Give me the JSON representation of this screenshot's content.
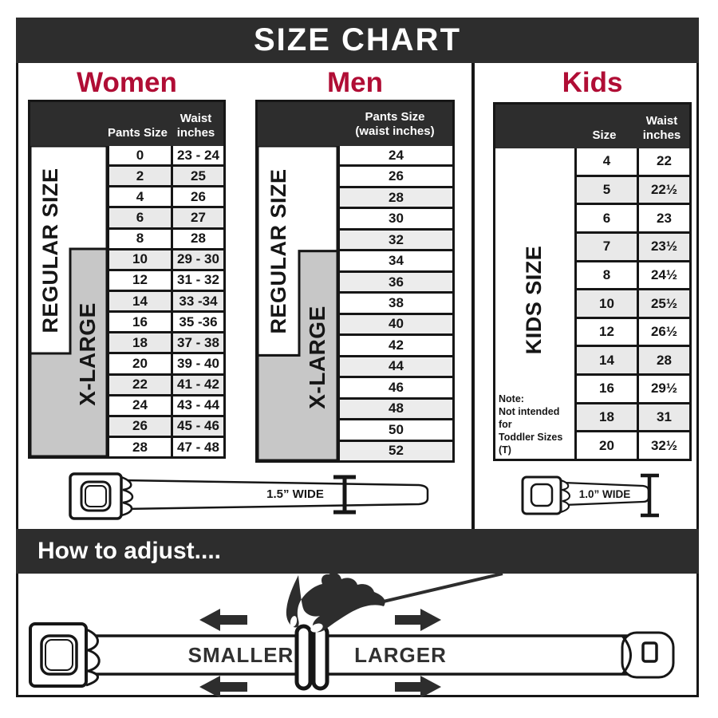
{
  "title": "SIZE CHART",
  "colors": {
    "bar_dark": "#2d2d2d",
    "accent_red": "#b00d35",
    "grid_black": "#161616",
    "xlarge_gray": "#c7c7c7",
    "row_alt_gray": "#e9e9e9"
  },
  "sections": {
    "women": {
      "title": "Women",
      "col1_header": "Pants Size",
      "col2_header_line1": "Waist",
      "col2_header_line2": "inches",
      "regular_label": "REGULAR SIZE",
      "xlarge_label": "X-LARGE",
      "rows": [
        [
          "0",
          "23 - 24"
        ],
        [
          "2",
          "25"
        ],
        [
          "4",
          "26"
        ],
        [
          "6",
          "27"
        ],
        [
          "8",
          "28"
        ],
        [
          "10",
          "29 - 30"
        ],
        [
          "12",
          "31 - 32"
        ],
        [
          "14",
          "33 -34"
        ],
        [
          "16",
          "35 -36"
        ],
        [
          "18",
          "37 - 38"
        ],
        [
          "20",
          "39 - 40"
        ],
        [
          "22",
          "41 - 42"
        ],
        [
          "24",
          "43 - 44"
        ],
        [
          "26",
          "45 - 46"
        ],
        [
          "28",
          "47 - 48"
        ]
      ]
    },
    "men": {
      "title": "Men",
      "header_line1": "Pants Size",
      "header_line2": "(waist inches)",
      "regular_label": "REGULAR SIZE",
      "xlarge_label": "X-LARGE",
      "rows": [
        [
          "24"
        ],
        [
          "26"
        ],
        [
          "28"
        ],
        [
          "30"
        ],
        [
          "32"
        ],
        [
          "34"
        ],
        [
          "36"
        ],
        [
          "38"
        ],
        [
          "40"
        ],
        [
          "42"
        ],
        [
          "44"
        ],
        [
          "46"
        ],
        [
          "48"
        ],
        [
          "50"
        ],
        [
          "52"
        ]
      ]
    },
    "kids": {
      "title": "Kids",
      "col1_header": "Size",
      "col2_header_line1": "Waist",
      "col2_header_line2": "inches",
      "side_label": "KIDS SIZE",
      "note_line1": "Note:",
      "note_line2": "Not intended for",
      "note_line3": "Toddler Sizes (T)",
      "rows": [
        [
          "4",
          "22"
        ],
        [
          "5",
          "22½"
        ],
        [
          "6",
          "23"
        ],
        [
          "7",
          "23½"
        ],
        [
          "8",
          "24½"
        ],
        [
          "10",
          "25½"
        ],
        [
          "12",
          "26½"
        ],
        [
          "14",
          "28"
        ],
        [
          "16",
          "29½"
        ],
        [
          "18",
          "31"
        ],
        [
          "20",
          "32½"
        ]
      ]
    }
  },
  "belts": {
    "adult_width_label": "1.5” WIDE",
    "kids_width_label": "1.0” WIDE"
  },
  "adjust": {
    "bar_title": "How to adjust....",
    "smaller_label": "SMALLER",
    "larger_label": "LARGER"
  }
}
